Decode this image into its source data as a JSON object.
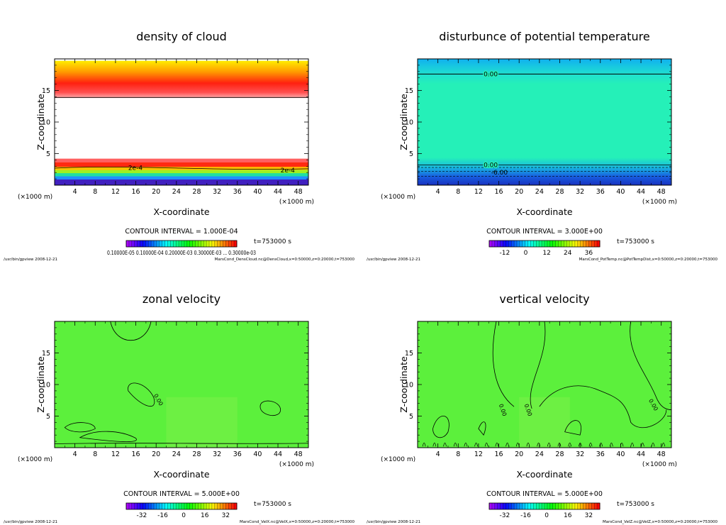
{
  "chart_data": [
    {
      "type": "heatmap",
      "title": "density of cloud",
      "xlabel": "X-coordinate",
      "ylabel": "Z-coordinate",
      "x_unit": "(×1000 m)",
      "xlim": [
        0,
        50
      ],
      "ylim": [
        0,
        20
      ],
      "x_ticks": [
        "4",
        "8",
        "12",
        "16",
        "20",
        "24",
        "28",
        "32",
        "36",
        "40",
        "44",
        "48"
      ],
      "y_ticks": [
        "5",
        "10",
        "15"
      ],
      "contour_interval": "CONTOUR INTERVAL = 1.000E-04",
      "time": "t=753000 s",
      "colorbar_labels": "0.10000E-05 0.10000E-04 0.20000E-03 0.30000E-03 ... 0.30000e-03",
      "contour_labels": [
        "2e-4",
        "2e-4"
      ],
      "footer_left": "/usr/bin/gpview   2008-12-21",
      "footer_right": "MarsCond_DensCloud.nc@DensCloud,x=0:50000,z=0:20000,t=753000",
      "colors": {
        "top": "#ff1a1a",
        "mid": "#ffd000",
        "base": "#ffffff"
      }
    },
    {
      "type": "heatmap",
      "title": "disturbunce of potential temperature",
      "xlabel": "X-coordinate",
      "ylabel": "Z-coordinate",
      "x_unit": "(×1000 m)",
      "xlim": [
        0,
        50
      ],
      "ylim": [
        0,
        20
      ],
      "x_ticks": [
        "4",
        "8",
        "12",
        "16",
        "20",
        "24",
        "28",
        "32",
        "36",
        "40",
        "44",
        "48"
      ],
      "y_ticks": [
        "5",
        "10",
        "15"
      ],
      "contour_interval": "CONTOUR INTERVAL = 3.000E+00",
      "time": "t=753000 s",
      "colorbar_ticks": [
        "-12",
        "0",
        "12",
        "24",
        "36"
      ],
      "contour_labels": [
        "0.00",
        "0.00",
        "-6.00"
      ],
      "footer_left": "/usr/bin/gpview   2008-12-21",
      "footer_right": "MarsCond_PotTemp.nc@PotTempDist,x=0:50000,z=0:20000,t=753000",
      "colors": {
        "field": "#25f0b8",
        "top": "#18c8e8",
        "bottom": "#1830c8"
      }
    },
    {
      "type": "heatmap",
      "title": "zonal velocity",
      "xlabel": "X-coordinate",
      "ylabel": "Z-coordinate",
      "x_unit": "(×1000 m)",
      "xlim": [
        0,
        50
      ],
      "ylim": [
        0,
        20
      ],
      "x_ticks": [
        "4",
        "8",
        "12",
        "16",
        "20",
        "24",
        "28",
        "32",
        "36",
        "40",
        "44",
        "48"
      ],
      "y_ticks": [
        "5",
        "10",
        "15"
      ],
      "contour_interval": "CONTOUR INTERVAL = 5.000E+00",
      "time": "t=753000 s",
      "colorbar_ticks": [
        "-32",
        "-16",
        "0",
        "16",
        "32"
      ],
      "contour_labels": [
        "0.00"
      ],
      "footer_left": "/usr/bin/gpview   2008-12-21",
      "footer_right": "MarsCond_VelX.nc@VelX,x=0:50000,z=0:20000,t=753000",
      "colors": {
        "field": "#5cf03c"
      }
    },
    {
      "type": "heatmap",
      "title": "vertical velocity",
      "xlabel": "X-coordinate",
      "ylabel": "Z-coordinate",
      "x_unit": "(×1000 m)",
      "xlim": [
        0,
        50
      ],
      "ylim": [
        0,
        20
      ],
      "x_ticks": [
        "4",
        "8",
        "12",
        "16",
        "20",
        "24",
        "28",
        "32",
        "36",
        "40",
        "44",
        "48"
      ],
      "y_ticks": [
        "5",
        "10",
        "15"
      ],
      "contour_interval": "CONTOUR INTERVAL = 5.000E+00",
      "time": "t=753000 s",
      "colorbar_ticks": [
        "-32",
        "-16",
        "0",
        "16",
        "32"
      ],
      "contour_labels": [
        "0.00",
        "0.00",
        "0.00"
      ],
      "footer_left": "/usr/bin/gpview   2008-12-21",
      "footer_right": "MarsCond_VelZ.nc@VelZ,x=0:50000,z=0:20000,t=753000",
      "colors": {
        "field": "#5cf03c"
      }
    }
  ]
}
